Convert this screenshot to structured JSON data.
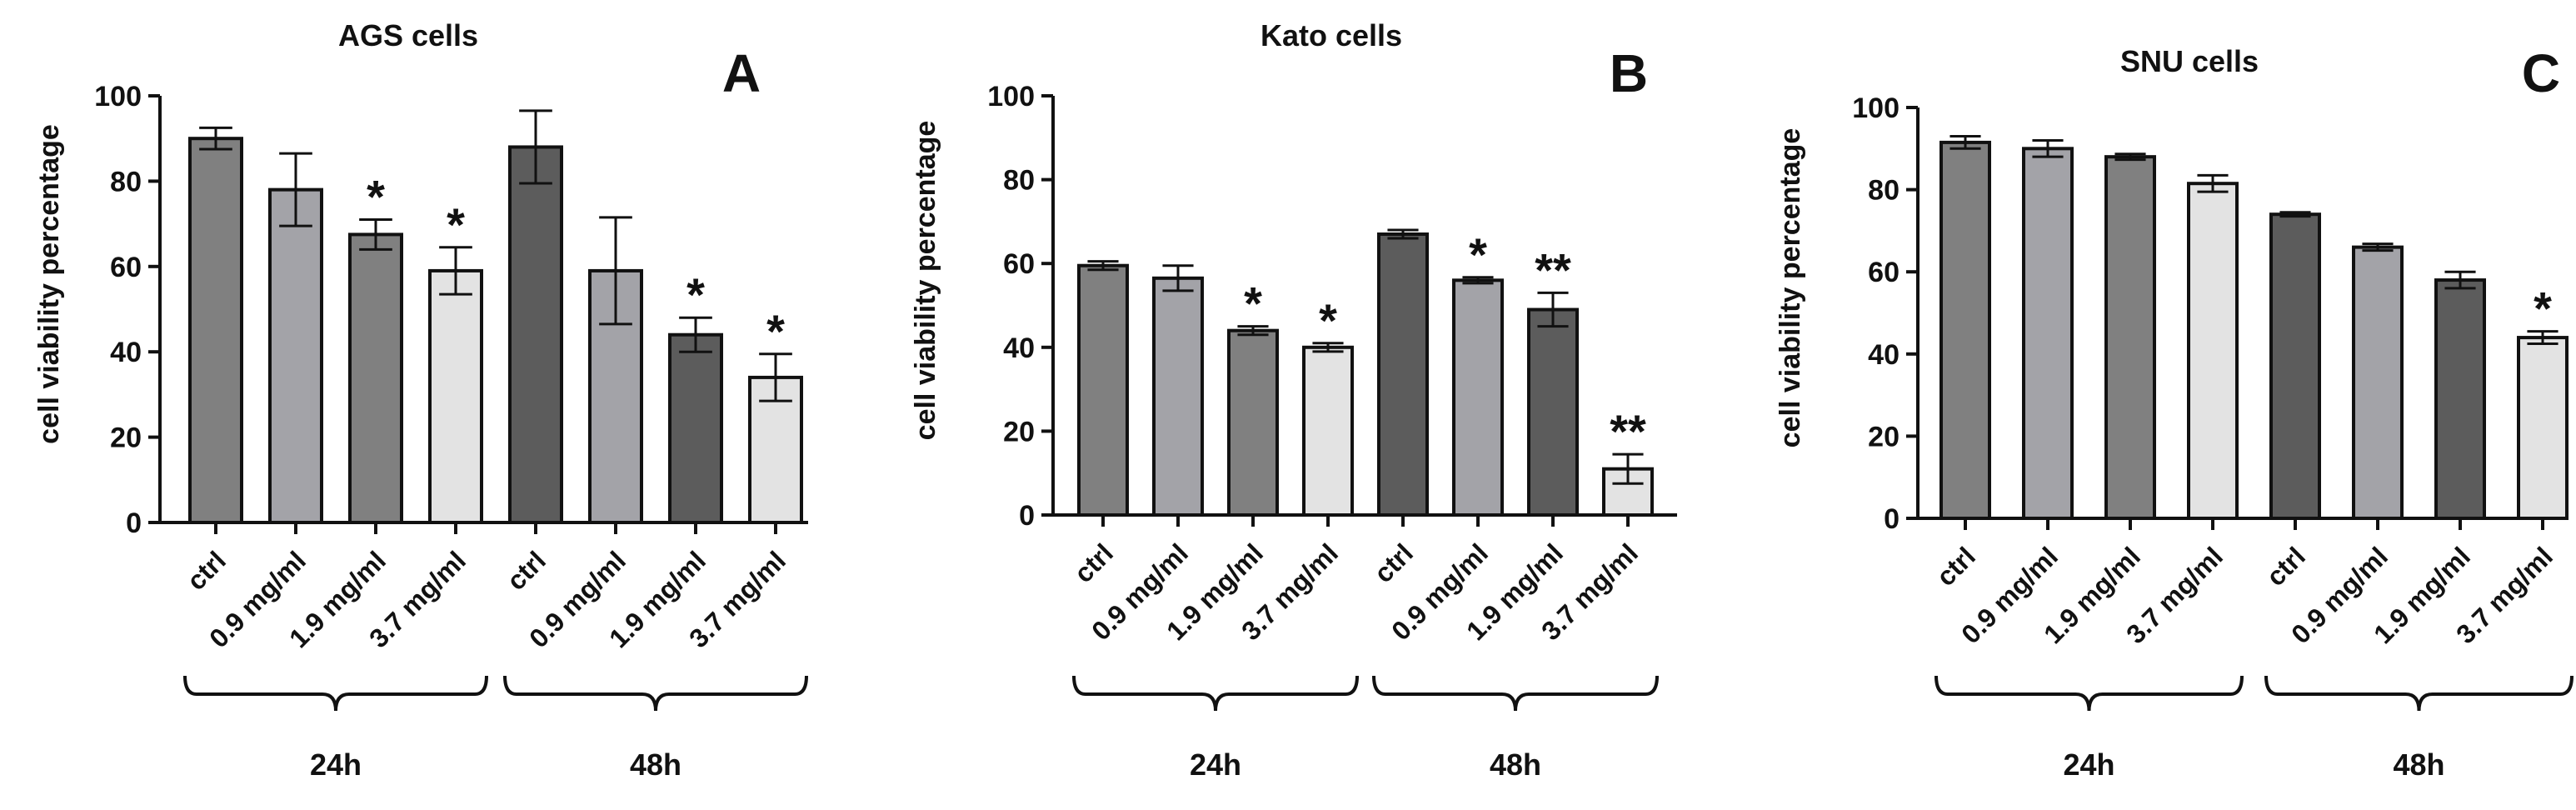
{
  "colors": {
    "background": "#ffffff",
    "axis": "#111111",
    "bar_stroke": "#111111",
    "fill_dark": "#5c5c5c",
    "fill_mid": "#808080",
    "fill_light": "#a3a3a8",
    "fill_pale": "#e3e3e3"
  },
  "chart_data": [
    {
      "type": "bar",
      "panel_letter": "A",
      "title": "AGS cells",
      "xlabel": "",
      "ylabel": "cell viability percentage",
      "ylim": [
        0,
        100
      ],
      "yticks": [
        "0",
        "20",
        "40",
        "60",
        "80",
        "100"
      ],
      "categories": [
        "ctrl",
        "0.9 mg/ml",
        "1.9 mg/ml",
        "3.7 mg/ml",
        "ctrl",
        "0.9 mg/ml",
        "1.9 mg/ml",
        "3.7 mg/ml"
      ],
      "values": [
        90,
        78,
        67.5,
        59,
        88,
        59,
        44,
        34
      ],
      "errors": [
        2.5,
        8.5,
        3.5,
        5.5,
        8.5,
        12.5,
        4,
        5.5
      ],
      "significance": [
        "",
        "",
        "*",
        "*",
        "",
        "",
        "*",
        "*"
      ],
      "fills": [
        "fill_mid",
        "fill_light",
        "fill_mid",
        "fill_pale",
        "fill_dark",
        "fill_light",
        "fill_dark",
        "fill_pale"
      ],
      "groups": [
        {
          "label": "24h",
          "from": 0,
          "to": 3
        },
        {
          "label": "48h",
          "from": 4,
          "to": 7
        }
      ]
    },
    {
      "type": "bar",
      "panel_letter": "B",
      "title": "Kato cells",
      "xlabel": "",
      "ylabel": "cell viability percentage",
      "ylim": [
        0,
        100
      ],
      "yticks": [
        "0",
        "20",
        "40",
        "60",
        "80",
        "100"
      ],
      "categories": [
        "ctrl",
        "0.9 mg/ml",
        "1.9 mg/ml",
        "3.7 mg/ml",
        "ctrl",
        "0.9 mg/ml",
        "1.9 mg/ml",
        "3.7 mg/ml"
      ],
      "values": [
        59.5,
        56.5,
        44,
        40,
        67,
        56,
        49,
        11
      ],
      "errors": [
        1,
        3,
        1,
        1,
        1,
        0.7,
        4,
        3.5
      ],
      "significance": [
        "",
        "",
        "*",
        "*",
        "",
        "*",
        "**",
        "**"
      ],
      "fills": [
        "fill_mid",
        "fill_light",
        "fill_mid",
        "fill_pale",
        "fill_dark",
        "fill_light",
        "fill_dark",
        "fill_pale"
      ],
      "groups": [
        {
          "label": "24h",
          "from": 0,
          "to": 3
        },
        {
          "label": "48h",
          "from": 4,
          "to": 7
        }
      ]
    },
    {
      "type": "bar",
      "panel_letter": "C",
      "title": "SNU cells",
      "xlabel": "",
      "ylabel": "cell viability percentage",
      "ylim": [
        0,
        100
      ],
      "yticks": [
        "0",
        "20",
        "40",
        "60",
        "80",
        "100"
      ],
      "categories": [
        "ctrl",
        "0.9 mg/ml",
        "1.9 mg/ml",
        "3.7 mg/ml",
        "ctrl",
        "0.9 mg/ml",
        "1.9 mg/ml",
        "3.7 mg/ml"
      ],
      "values": [
        91.5,
        90,
        88,
        81.5,
        74,
        66,
        58,
        44
      ],
      "errors": [
        1.5,
        2,
        0.7,
        2,
        0.5,
        0.8,
        2,
        1.5
      ],
      "significance": [
        "",
        "",
        "",
        "",
        "",
        "",
        "",
        "*"
      ],
      "fills": [
        "fill_mid",
        "fill_light",
        "fill_mid",
        "fill_pale",
        "fill_dark",
        "fill_light",
        "fill_dark",
        "fill_pale"
      ],
      "groups": [
        {
          "label": "24h",
          "from": 0,
          "to": 3
        },
        {
          "label": "48h",
          "from": 4,
          "to": 7
        }
      ]
    }
  ]
}
